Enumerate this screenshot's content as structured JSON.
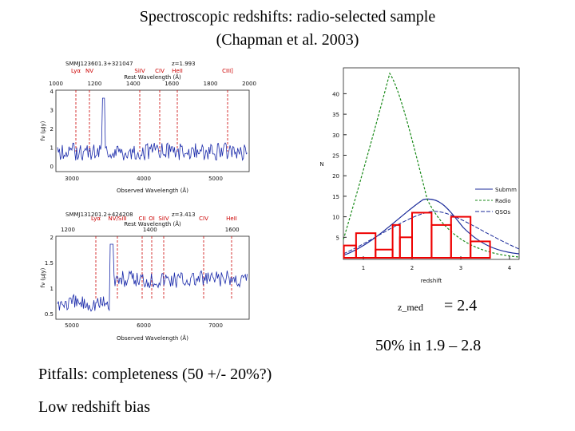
{
  "title": [
    "Spectroscopic redshifts: radio-selected sample",
    "(Chapman et al. 2003)"
  ],
  "spectra": [
    {
      "name": "SMMJ123601.3+321047",
      "z": "z=1.993",
      "lines": [
        "Lyα",
        "NV",
        "SiIV",
        "CIV",
        "HeII",
        "CIII]"
      ],
      "rest_label": "Rest Wavelength (Å)",
      "rest_ticks": [
        "1000",
        "1200",
        "1400",
        "1600",
        "1800",
        "2000"
      ],
      "obs_label": "Observed Wavelength (Å)",
      "obs_ticks": [
        "3000",
        "4000",
        "5000"
      ],
      "y_label": "fν (μJy)",
      "y_ticks": [
        "4",
        "3",
        "2",
        "1",
        "0"
      ]
    },
    {
      "name": "SMMJ131201.2+424208",
      "z": "z=3.413",
      "lines": [
        "Lyα",
        "NV/SiII",
        "CII",
        "OI",
        "SiIV",
        "CIV",
        "HeII"
      ],
      "rest_label": "Rest Wavelength (Å)",
      "rest_ticks": [
        "1200",
        "1400",
        "1600"
      ],
      "obs_label": "Observed Wavelength (Å)",
      "obs_ticks": [
        "5000",
        "6000",
        "7000"
      ],
      "y_label": "fν (μJy)",
      "y_ticks": [
        "2",
        "1.5",
        "1",
        "0.5"
      ]
    }
  ],
  "histogram": {
    "y_label": "N",
    "x_label": "redshift",
    "yticks": [
      5,
      10,
      15,
      20,
      25,
      30,
      35,
      40
    ],
    "xticks": [
      1,
      2,
      3,
      4
    ],
    "bins": [
      0.6,
      0.85,
      1.25,
      1.6,
      1.75,
      2,
      2.4,
      2.8,
      3.2,
      3.6
    ],
    "counts": [
      3,
      6,
      2,
      8,
      5,
      11,
      8,
      10,
      4
    ],
    "legend": [
      "Submm",
      "Radio",
      "QSOs"
    ]
  },
  "notes": {
    "zmed_symbol": "z_med",
    "zmed_value": "= 2.4",
    "range": "50% in 1.9 – 2.8",
    "pitfall": "Pitfalls:  completeness (50 +/- 20%?)",
    "bias": "Low redshift bias"
  }
}
